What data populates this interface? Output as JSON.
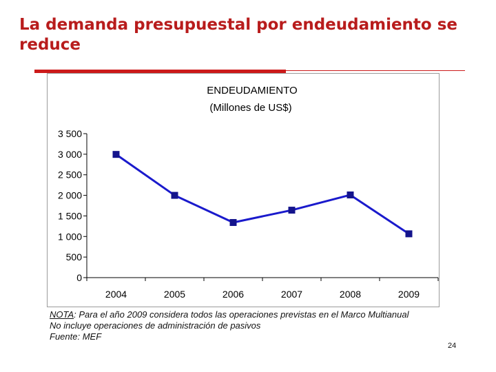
{
  "slide": {
    "title": "La demanda presupuestal por endeudamiento se reduce",
    "page_number": "24"
  },
  "chart_data": {
    "type": "line",
    "title": "ENDEUDAMIENTO",
    "subtitle": "(Millones de US$)",
    "categories": [
      "2004",
      "2005",
      "2006",
      "2007",
      "2008",
      "2009"
    ],
    "series": [
      {
        "name": "Endeudamiento",
        "values": [
          2995,
          2000,
          1340,
          1640,
          2010,
          1065
        ]
      }
    ],
    "yticks": [
      "0",
      "500",
      "1 000",
      "1 500",
      "2 000",
      "2 500",
      "3 000",
      "3 500"
    ],
    "ylim": [
      0,
      3500
    ],
    "xlabel": "",
    "ylabel": "",
    "grid": false,
    "colors": {
      "line": "#1a1acc",
      "marker": "#14148c"
    }
  },
  "notes": {
    "nota_label": "NOTA",
    "nota_text": ": Para el año 2009 considera todos las operaciones previstas en el Marco Multianual",
    "line2": "No incluye operaciones de administración de pasivos",
    "source": "Fuente: MEF"
  }
}
